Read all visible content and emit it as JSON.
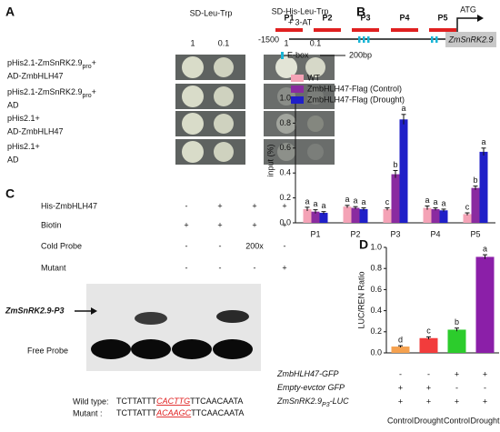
{
  "panel_a": {
    "label": "A",
    "columns": [
      {
        "lines": [
          "SD-Leu-Trp"
        ],
        "dilutions": [
          "1",
          "0.1"
        ]
      },
      {
        "lines": [
          "SD-His-Leu-Trp",
          "+ 3-AT"
        ],
        "dilutions": [
          "1",
          "0.1"
        ]
      }
    ],
    "rows": [
      {
        "line1": "pHis2.1-ZmSnRK2.9",
        "sub": "pro",
        "plus": "+",
        "line2": "AD-ZmbHLH47"
      },
      {
        "line1": "pHis2.1-ZmSnRK2.9",
        "sub": "pro",
        "plus": "+",
        "line2": "AD"
      },
      {
        "line1": "pHis2.1+",
        "line2": "AD-ZmbHLH47"
      },
      {
        "line1": "pHis2.1+",
        "line2": "AD"
      }
    ]
  },
  "panel_b": {
    "label": "B",
    "promoters": [
      "P1",
      "P2",
      "P3",
      "P4",
      "P5"
    ],
    "start": "ATG",
    "position": "-1500",
    "gene": "ZmSnRK2.9",
    "ebox": "E-box",
    "scale": "200bp"
  },
  "panel_c": {
    "label": "C",
    "rows": [
      {
        "name": "His-ZmbHLH47",
        "lanes": [
          "-",
          "+",
          "+",
          "+"
        ]
      },
      {
        "name": "Biotin",
        "lanes": [
          "+",
          "+",
          "+",
          "+"
        ]
      },
      {
        "name": "Cold Probe",
        "lanes": [
          "-",
          "-",
          "200x",
          "-"
        ]
      },
      {
        "name": "Mutant",
        "lanes": [
          "-",
          "-",
          "-",
          "+"
        ]
      }
    ],
    "band": "ZmSnRK2.9-P3",
    "free": "Free Probe",
    "sequences": [
      {
        "name": "Wild type:",
        "parts": [
          "TCTTATTT",
          "CACTTG",
          "TTCAACAATA"
        ]
      },
      {
        "name": "Mutant  :",
        "parts": [
          "TCTTATTT",
          "ACAAGC",
          "TTCAACAATA"
        ]
      }
    ]
  },
  "chart_data": [
    {
      "type": "bar",
      "ylabel": "input (%)",
      "categories": [
        "P1",
        "P2",
        "P3",
        "P4",
        "P5"
      ],
      "ylim": [
        0,
        1.0
      ],
      "yticks": [
        {
          "value": 0,
          "label": "0.0"
        },
        0.2,
        0.4,
        0.6,
        0.8,
        {
          "value": 1.0,
          "label": "1.0"
        }
      ],
      "legend": "upper left",
      "series": [
        {
          "name": "WT",
          "color": "#f4a3b6",
          "values": [
            0.11,
            0.13,
            0.11,
            0.12,
            0.07
          ],
          "errors": [
            0.015,
            0.01,
            0.01,
            0.015,
            0.01
          ],
          "letters": [
            "a",
            "a",
            "c",
            "a",
            "c"
          ]
        },
        {
          "name": "ZmbHLH47-Flag (Control)",
          "color": "#8a2ba0",
          "values": [
            0.09,
            0.12,
            0.39,
            0.11,
            0.28
          ],
          "errors": [
            0.015,
            0.01,
            0.03,
            0.01,
            0.015
          ],
          "letters": [
            "a",
            "a",
            "b",
            "a",
            "b"
          ]
        },
        {
          "name": "ZmbHLH47-Flag (Drought)",
          "color": "#1f1fc8",
          "values": [
            0.08,
            0.11,
            0.83,
            0.1,
            0.57
          ],
          "errors": [
            0.01,
            0.01,
            0.04,
            0.01,
            0.03
          ],
          "letters": [
            "a",
            "a",
            "a",
            "a",
            "a"
          ]
        }
      ]
    },
    {
      "type": "bar",
      "panel_label": "D",
      "ylabel": "LUC/REN Ratio",
      "categories": [
        "Control",
        "Drought",
        "Control",
        "Drought"
      ],
      "values": [
        0.06,
        0.14,
        0.22,
        0.91
      ],
      "errors": [
        0.008,
        0.012,
        0.015,
        0.02
      ],
      "letters": [
        "d",
        "c",
        "b",
        "a"
      ],
      "colors": [
        "#f5a14f",
        "#f23c3c",
        "#2ccc2c",
        "#8b1fa8"
      ],
      "ylim": [
        0,
        1.0
      ],
      "yticks": [
        {
          "value": 0,
          "label": "0.0"
        },
        0.2,
        0.4,
        0.6,
        0.8,
        {
          "value": 1.0,
          "label": "1.0"
        }
      ],
      "conditions": [
        {
          "name": "ZmbHLH47-GFP",
          "marks": [
            "-",
            "-",
            "+",
            "+"
          ]
        },
        {
          "name": "Empty-evctor GFP",
          "marks": [
            "+",
            "+",
            "-",
            "-"
          ]
        },
        {
          "name": "ZmSnRK2.9",
          "sub": "P3",
          "suffix": "-LUC",
          "marks": [
            "+",
            "+",
            "+",
            "+"
          ]
        }
      ]
    }
  ]
}
